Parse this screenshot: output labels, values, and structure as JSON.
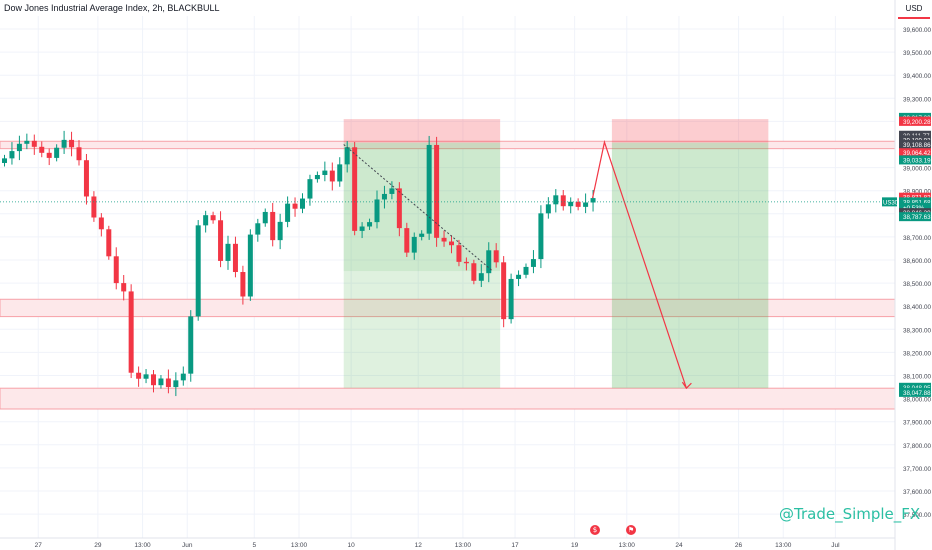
{
  "header": {
    "title": "Dow Jones Industrial Average Index, 2h, BLACKBULL",
    "currency": "USD"
  },
  "watermark": "@Trade_Simple_FX",
  "icons": {
    "event1": "economic-event-icon",
    "event2": "flag-event-icon"
  },
  "colors": {
    "bull": "#089981",
    "bear": "#f23645",
    "profit_zone": "#4caf50",
    "stop_zone": "#f23645",
    "sr_zone": "#f8bbc0",
    "watermark": "#2bbfa3"
  },
  "chart_data": {
    "type": "candlestick",
    "title": "Dow Jones Industrial Average Index, 2h, BLACKBULL",
    "symbol": "US30",
    "ylim": [
      37450,
      39720
    ],
    "y_ticks": [
      37500,
      37600,
      37700,
      37800,
      37900,
      38000,
      38100,
      38200,
      38300,
      38400,
      38500,
      38600,
      38700,
      38800,
      38900,
      39000,
      39100,
      39200,
      39300,
      39400,
      39500,
      39600
    ],
    "y_tick_labels": [
      "37,500.00",
      "37,600.00",
      "37,700.00",
      "37,800.00",
      "37,900.00",
      "38,000.00",
      "38,100.00",
      "38,200.00",
      "38,300.00",
      "38,400.00",
      "38,500.00",
      "38,600.00",
      "38,700.00",
      "38,800.00",
      "38,900.00",
      "39,000.00",
      "39,100.00",
      "39,200.00",
      "39,300.00",
      "39,400.00",
      "39,500.00",
      "39,600.00"
    ],
    "x_tick_labels": [
      {
        "label": "27",
        "bar": 5
      },
      {
        "label": "29",
        "bar": 13
      },
      {
        "label": "13:00",
        "bar": 19
      },
      {
        "label": "Jun",
        "bar": 25
      },
      {
        "label": "5",
        "bar": 34
      },
      {
        "label": "13:00",
        "bar": 40
      },
      {
        "label": "10",
        "bar": 47
      },
      {
        "label": "12",
        "bar": 56
      },
      {
        "label": "13:00",
        "bar": 62
      },
      {
        "label": "17",
        "bar": 69
      },
      {
        "label": "19",
        "bar": 77
      },
      {
        "label": "13:00",
        "bar": 84
      },
      {
        "label": "24",
        "bar": 91
      },
      {
        "label": "26",
        "bar": 99
      },
      {
        "label": "13:00",
        "bar": 105
      },
      {
        "label": "Jul",
        "bar": 112
      }
    ],
    "bar_count": 124,
    "price_keypoints": [
      [
        0,
        39070
      ],
      [
        2,
        39085
      ],
      [
        3,
        39140
      ],
      [
        5,
        39040
      ],
      [
        7,
        39080
      ],
      [
        9,
        39100
      ],
      [
        10,
        39020
      ],
      [
        12,
        38790
      ],
      [
        14,
        38640
      ],
      [
        15,
        38500
      ],
      [
        16,
        38440
      ],
      [
        17,
        38130
      ],
      [
        18,
        38080
      ],
      [
        20,
        38070
      ],
      [
        22,
        38080
      ],
      [
        24,
        38090
      ],
      [
        25,
        38380
      ],
      [
        26,
        38750
      ],
      [
        28,
        38790
      ],
      [
        29,
        38590
      ],
      [
        30,
        38640
      ],
      [
        31,
        38560
      ],
      [
        32,
        38430
      ],
      [
        33,
        38740
      ],
      [
        35,
        38790
      ],
      [
        36,
        38710
      ],
      [
        38,
        38820
      ],
      [
        40,
        38860
      ],
      [
        42,
        38980
      ],
      [
        44,
        38970
      ],
      [
        46,
        39070
      ],
      [
        47,
        38750
      ],
      [
        49,
        38740
      ],
      [
        50,
        38880
      ],
      [
        52,
        38880
      ],
      [
        54,
        38620
      ],
      [
        55,
        38730
      ],
      [
        56,
        38720
      ],
      [
        57,
        39080
      ],
      [
        58,
        38720
      ],
      [
        60,
        38640
      ],
      [
        62,
        38580
      ],
      [
        63,
        38480
      ],
      [
        65,
        38630
      ],
      [
        66,
        38620
      ],
      [
        67,
        38350
      ],
      [
        68,
        38500
      ],
      [
        69,
        38560
      ],
      [
        71,
        38580
      ],
      [
        72,
        38820
      ],
      [
        74,
        38850
      ],
      [
        76,
        38840
      ],
      [
        77,
        38860
      ],
      [
        79,
        38850
      ]
    ],
    "projection": [
      {
        "bar": 81,
        "price": 39110
      },
      {
        "bar": 92,
        "price": 38045
      }
    ],
    "horizontal_zones": [
      {
        "from": 39082,
        "to": 39114
      },
      {
        "from": 38355,
        "to": 38430
      },
      {
        "from": 37955,
        "to": 38045
      }
    ],
    "positions": [
      {
        "type": "long",
        "start_bar": 46,
        "end_bar": 67,
        "entry": 39108,
        "target": 38552,
        "stop": 39210
      },
      {
        "type": "short",
        "start_bar": 82,
        "end_bar": 103,
        "entry": 39108,
        "target": 38045,
        "stop": 39210
      }
    ],
    "price_labels": [
      {
        "text": "39,217.39",
        "price": 39217.39,
        "color": "#089981"
      },
      {
        "text": "39,201.25",
        "price": 39201.25,
        "color": "#f23645"
      },
      {
        "text": "39,200.28",
        "price": 39200.28,
        "color": "#f23645"
      },
      {
        "text": "39,111.77",
        "price": 39140,
        "color": "#434651"
      },
      {
        "text": "39,109.93",
        "price": 39120,
        "color": "#434651"
      },
      {
        "text": "39,108.86",
        "price": 39100,
        "color": "#434651"
      },
      {
        "text": "39,064.42",
        "price": 39064.42,
        "color": "#f23645"
      },
      {
        "text": "39,033.19",
        "price": 39033.19,
        "color": "#089981"
      },
      {
        "text": "38,871.82",
        "price": 38871.82,
        "color": "#f23645"
      },
      {
        "text": "38,851.68",
        "price": 38851.68,
        "color": "#089981"
      },
      {
        "text": "+0.53%",
        "price": 38828,
        "color": "#089981"
      },
      {
        "text": "38,846.29",
        "price": 38805,
        "color": "#434651"
      },
      {
        "text": "38,787.63",
        "price": 38787.63,
        "color": "#089981"
      },
      {
        "text": "38,048.95",
        "price": 38048.95,
        "color": "#089981"
      },
      {
        "text": "38,047.88",
        "price": 38027,
        "color": "#089981"
      }
    ],
    "symbol_label": {
      "text": "US30",
      "price": 38851.68
    },
    "grid": true
  }
}
